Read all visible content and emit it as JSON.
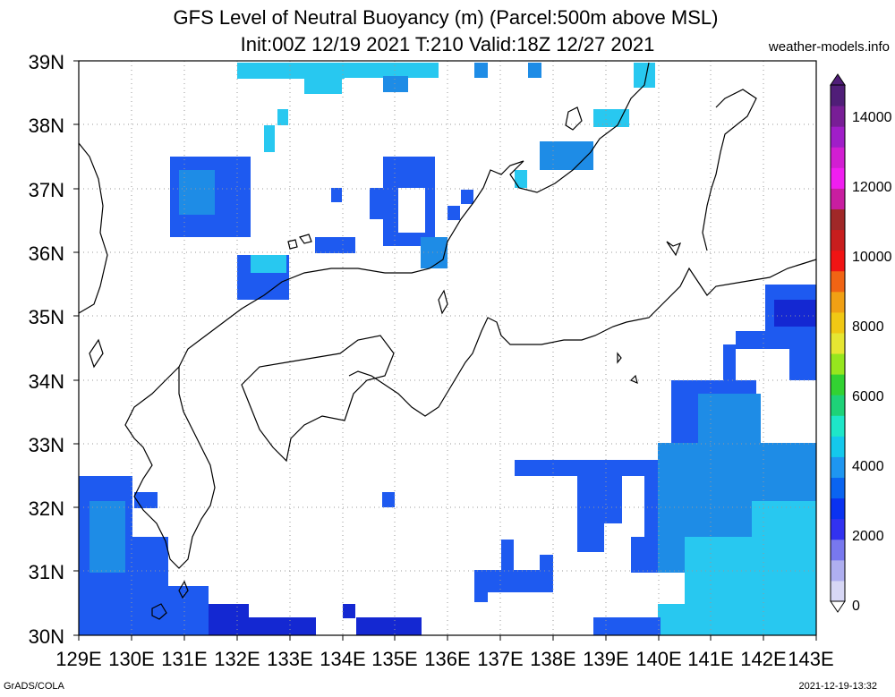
{
  "header": {
    "title_line1": "GFS Level of Neutral Buoyancy (m) (Parcel:500m above MSL)",
    "title_line2": "Init:00Z 12/19 2021 T:210 Valid:18Z 12/27 2021",
    "site": "weather-models.info"
  },
  "footer": {
    "left": "GrADS/COLA",
    "right": "2021-12-19-13:32"
  },
  "map": {
    "lat_labels": [
      "39N",
      "38N",
      "37N",
      "36N",
      "35N",
      "34N",
      "33N",
      "32N",
      "31N",
      "30N"
    ],
    "lon_labels": [
      "129E",
      "130E",
      "131E",
      "132E",
      "133E",
      "134E",
      "135E",
      "136E",
      "137E",
      "138E",
      "139E",
      "140E",
      "141E",
      "142E",
      "143E"
    ],
    "colorbar_labels": [
      "14000",
      "12000",
      "10000",
      "8000",
      "6000",
      "4000",
      "2000",
      "0"
    ],
    "colorbar_colors": [
      "#d7d7f5",
      "#afaff0",
      "#7878ee",
      "#3232f0",
      "#0a32f0",
      "#0a64f0",
      "#1e96f0",
      "#14c8ec",
      "#1ee6c8",
      "#1ed278",
      "#32d232",
      "#96e61e",
      "#e6e632",
      "#f0c814",
      "#f0a014",
      "#f06414",
      "#f01414",
      "#c81e1e",
      "#a02828",
      "#c81ea0",
      "#f01ef0",
      "#d21ed2",
      "#a01ec8",
      "#781e96",
      "#501e78"
    ],
    "field_colors": {
      "blue": "#1e5af0",
      "mid": "#1e8ce6",
      "cyan": "#28c8f0",
      "dark": "#1428d2"
    }
  }
}
